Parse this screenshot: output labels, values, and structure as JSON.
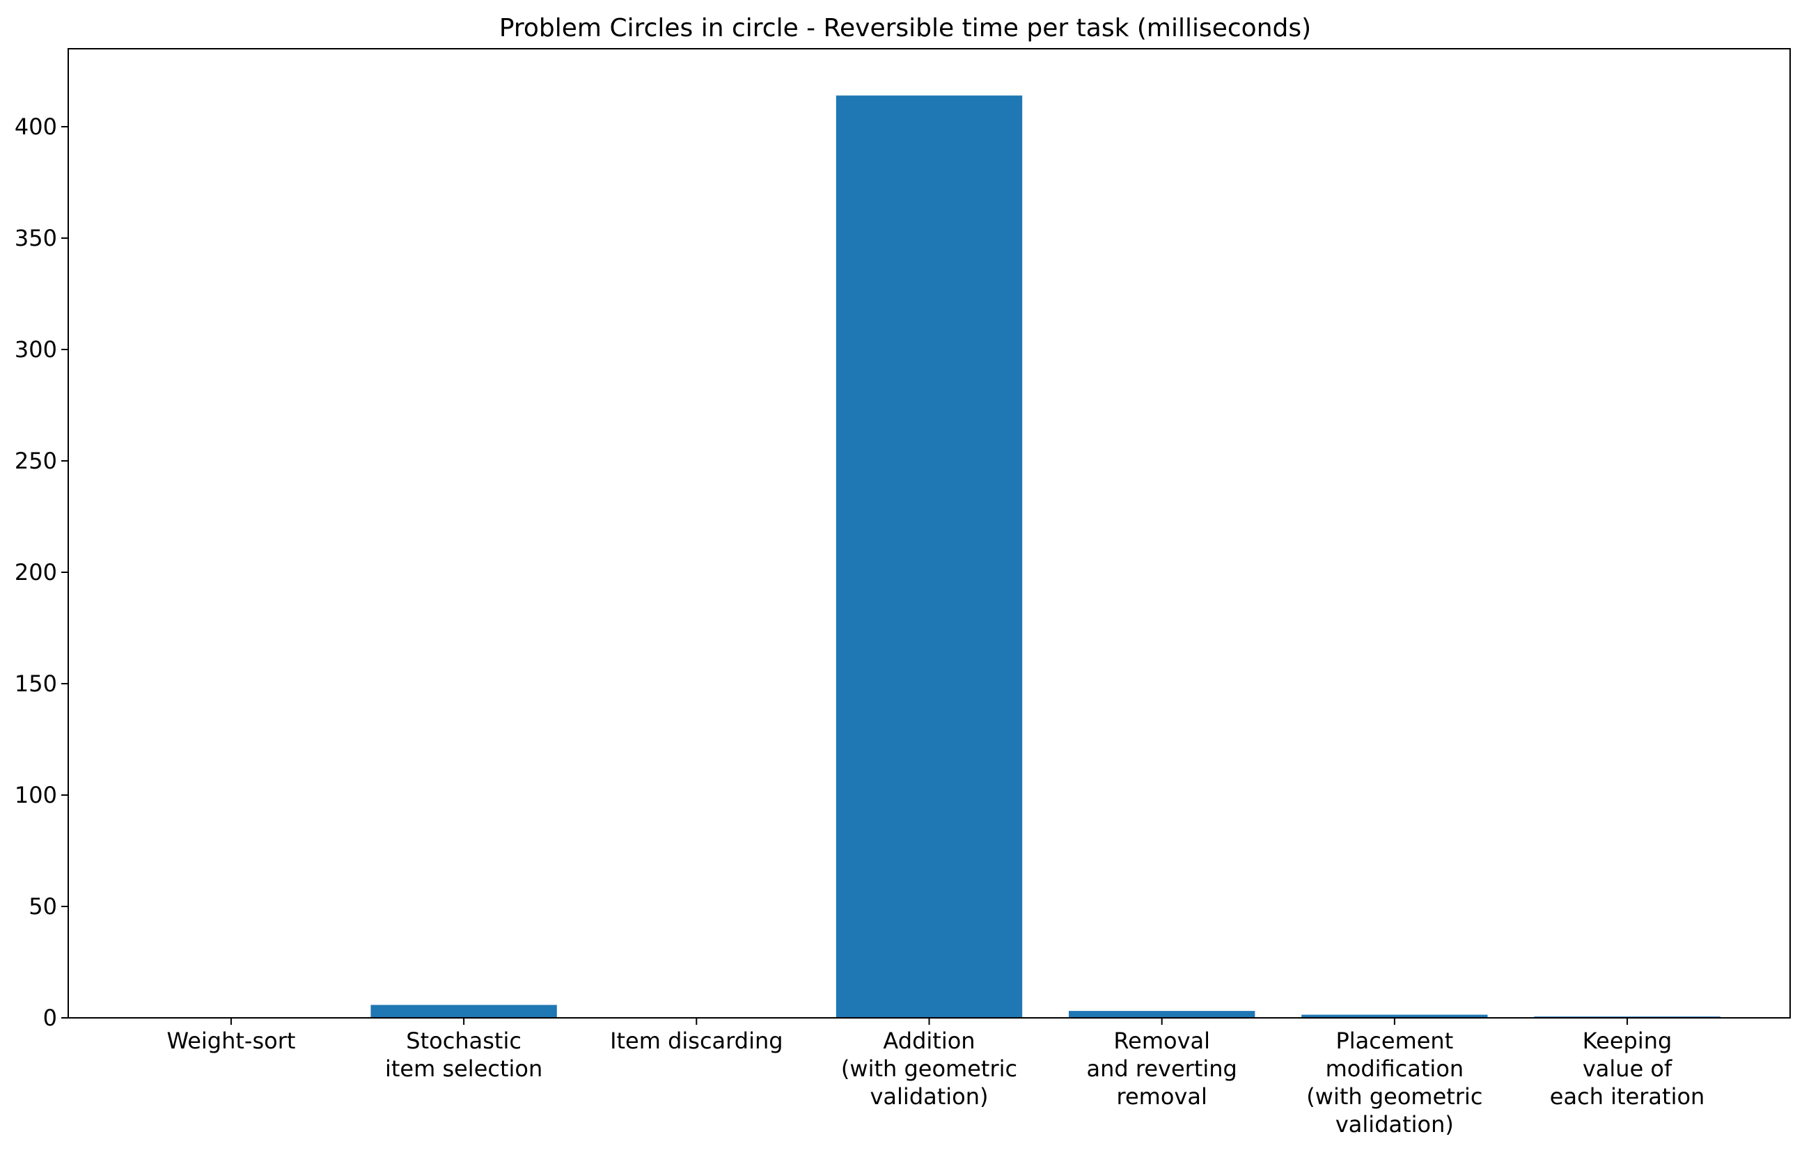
{
  "chart_data": {
    "type": "bar",
    "title": "Problem Circles in circle - Reversible time per task (milliseconds)",
    "xlabel": "",
    "ylabel": "",
    "categories": [
      [
        "Weight-sort"
      ],
      [
        "Stochastic",
        "item selection"
      ],
      [
        "Item discarding"
      ],
      [
        "Addition",
        "(with geometric",
        "validation)"
      ],
      [
        "Removal",
        "and reverting",
        "removal"
      ],
      [
        "Placement",
        "modification",
        "(with geometric",
        "validation)"
      ],
      [
        "Keeping",
        "value of",
        "each iteration"
      ]
    ],
    "values": [
      0.1,
      5.8,
      0.1,
      414,
      3.1,
      1.4,
      0.6
    ],
    "ylim": [
      0,
      435
    ],
    "yticks": [
      0,
      50,
      100,
      150,
      200,
      250,
      300,
      350,
      400
    ],
    "bar_color": "#1f77b4",
    "grid": false,
    "legend": "none"
  }
}
